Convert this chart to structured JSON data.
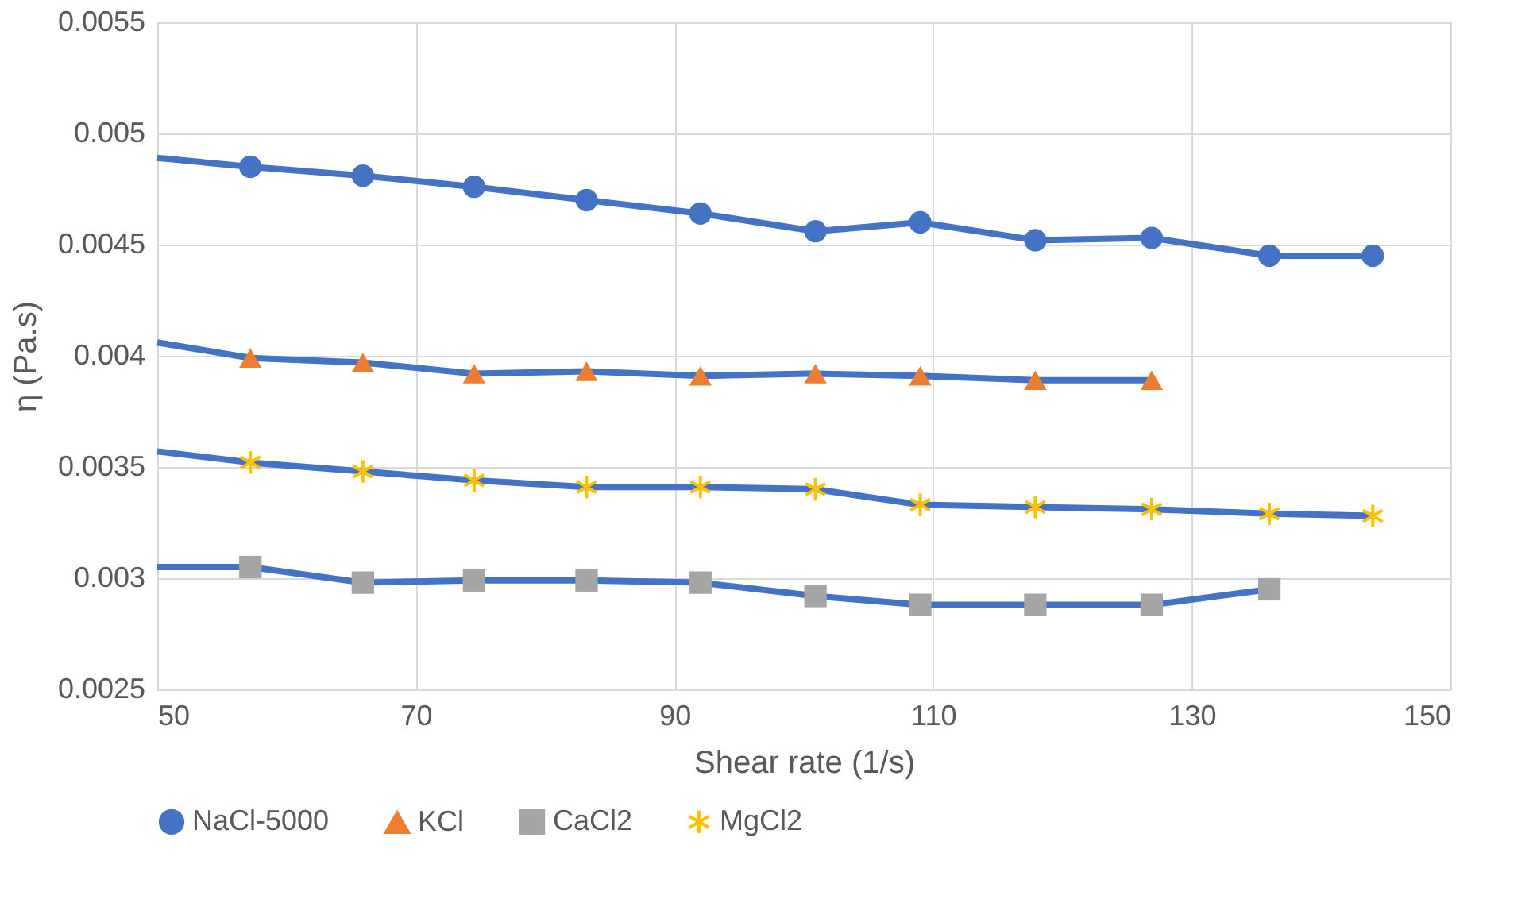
{
  "chart_data": {
    "type": "line",
    "xlabel": "Shear rate (1/s)",
    "ylabel": "η (Pa.s)",
    "xlim": [
      50,
      150
    ],
    "xticks": [
      50,
      70,
      90,
      110,
      130,
      150
    ],
    "ylim": [
      0.0025,
      0.0055
    ],
    "yticks": [
      0.0025,
      0.003,
      0.0035,
      0.004,
      0.0045,
      0.005,
      0.0055
    ],
    "grid": true,
    "legend": "bottom",
    "series": [
      {
        "name": "NaCl-5000",
        "color": "#4472c4",
        "marker": "circle",
        "x": [
          50,
          57.2,
          65.9,
          74.5,
          83.2,
          92.0,
          100.9,
          109.0,
          117.9,
          126.9,
          136.0,
          144.0
        ],
        "values": [
          0.00489,
          0.00485,
          0.00481,
          0.00476,
          0.0047,
          0.00464,
          0.00456,
          0.0046,
          0.00452,
          0.00453,
          0.00445,
          0.00445
        ]
      },
      {
        "name": "KCl",
        "color": "#ed7d31",
        "marker": "triangle",
        "x": [
          50,
          57.2,
          65.9,
          74.5,
          83.2,
          92.0,
          100.9,
          109.0,
          117.9,
          126.9
        ],
        "values": [
          0.00406,
          0.00399,
          0.00397,
          0.00392,
          0.00393,
          0.00391,
          0.00392,
          0.00391,
          0.00389,
          0.00389
        ]
      },
      {
        "name": "CaCl2",
        "color": "#a5a5a5",
        "marker": "square",
        "x": [
          50,
          57.2,
          65.9,
          74.5,
          83.2,
          92.0,
          100.9,
          109.0,
          117.9,
          126.9,
          136.0
        ],
        "values": [
          0.00305,
          0.00305,
          0.00298,
          0.00299,
          0.00299,
          0.00298,
          0.00292,
          0.00288,
          0.00288,
          0.00288,
          0.00295
        ]
      },
      {
        "name": "MgCl2",
        "color": "#ffc000",
        "marker": "cross",
        "x": [
          50,
          57.2,
          65.9,
          74.5,
          83.2,
          92.0,
          100.9,
          109.0,
          117.9,
          126.9,
          136.0,
          144.0
        ],
        "values": [
          0.00357,
          0.00352,
          0.00348,
          0.00344,
          0.00341,
          0.00341,
          0.0034,
          0.00333,
          0.00332,
          0.00331,
          0.00329,
          0.00328
        ]
      }
    ]
  }
}
